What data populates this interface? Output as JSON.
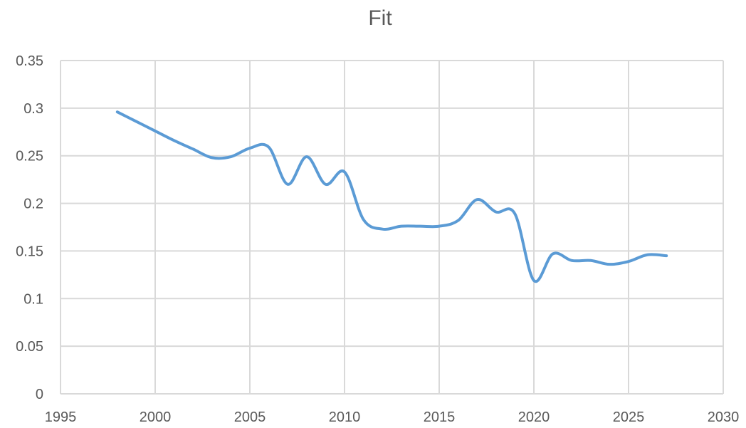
{
  "chart_data": {
    "type": "line",
    "title": "Fit",
    "xlabel": "",
    "ylabel": "",
    "xlim": [
      1995,
      2030
    ],
    "ylim": [
      0,
      0.35
    ],
    "x_ticks": [
      1995,
      2000,
      2005,
      2010,
      2015,
      2020,
      2025,
      2030
    ],
    "y_ticks": [
      0,
      0.05,
      0.1,
      0.15,
      0.2,
      0.25,
      0.3,
      0.35
    ],
    "x_tick_labels": [
      "1995",
      "2000",
      "2005",
      "2010",
      "2015",
      "2020",
      "2025",
      "2030"
    ],
    "y_tick_labels": [
      "0",
      "0.05",
      "0.1",
      "0.15",
      "0.2",
      "0.25",
      "0.3",
      "0.35"
    ],
    "grid": true,
    "legend": "none",
    "smooth": true,
    "series": [
      {
        "color": "#5b9bd5",
        "x": [
          1998,
          1999,
          2000,
          2001,
          2002,
          2003,
          2004,
          2005,
          2006,
          2007,
          2008,
          2009,
          2010,
          2011,
          2012,
          2013,
          2014,
          2015,
          2016,
          2017,
          2018,
          2019,
          2020,
          2021,
          2022,
          2023,
          2024,
          2025,
          2026,
          2027
        ],
        "values": [
          0.296,
          0.286,
          0.276,
          0.266,
          0.257,
          0.248,
          0.249,
          0.258,
          0.259,
          0.22,
          0.249,
          0.22,
          0.233,
          0.183,
          0.173,
          0.176,
          0.176,
          0.176,
          0.182,
          0.204,
          0.191,
          0.189,
          0.119,
          0.147,
          0.14,
          0.14,
          0.136,
          0.139,
          0.146,
          0.145
        ]
      }
    ]
  }
}
